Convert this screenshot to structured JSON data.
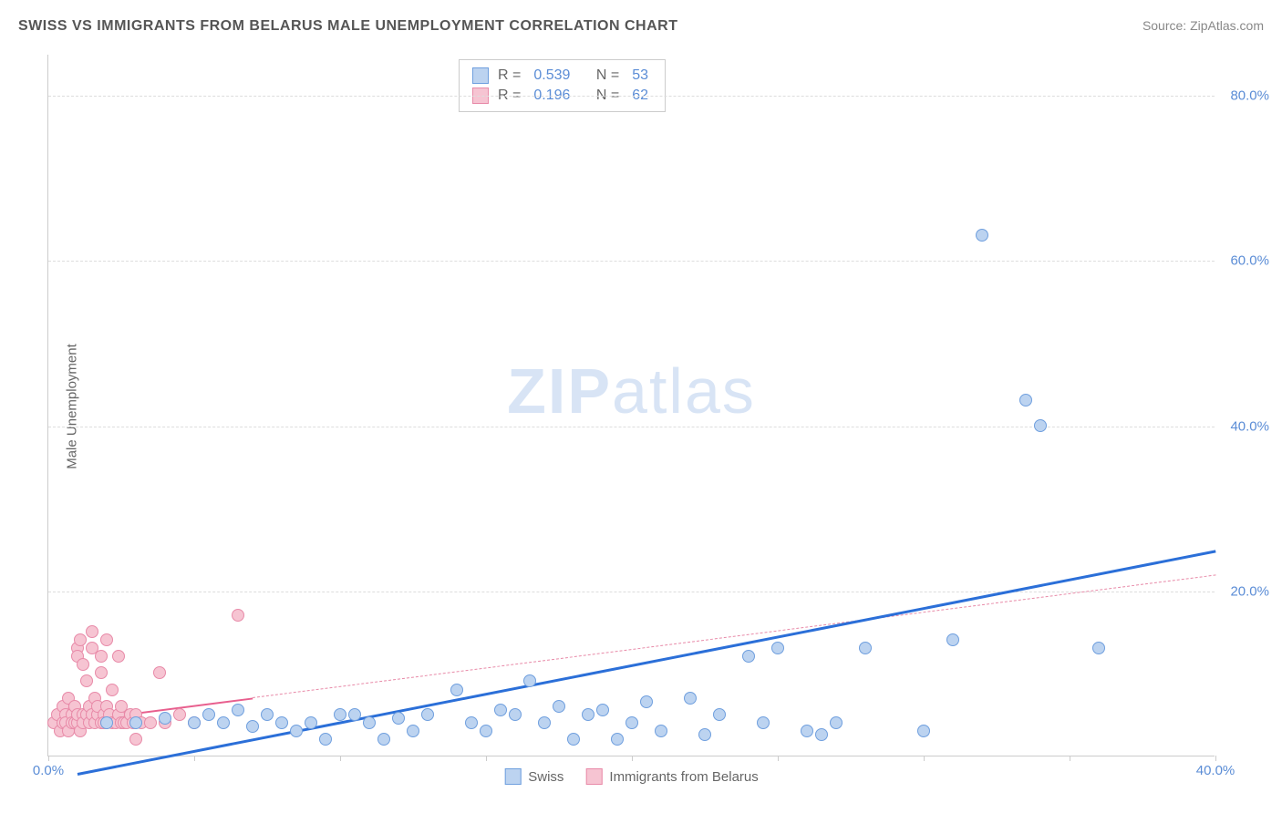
{
  "title": "SWISS VS IMMIGRANTS FROM BELARUS MALE UNEMPLOYMENT CORRELATION CHART",
  "source_label": "Source: ",
  "source_name": "ZipAtlas.com",
  "y_axis_label": "Male Unemployment",
  "watermark": {
    "bold": "ZIP",
    "light": "atlas"
  },
  "chart": {
    "type": "scatter",
    "xlim": [
      0,
      40
    ],
    "ylim": [
      0,
      85
    ],
    "x_ticks": [
      0,
      5,
      10,
      15,
      20,
      25,
      30,
      35,
      40
    ],
    "x_tick_labels": {
      "0": "0.0%",
      "40": "40.0%"
    },
    "y_ticks": [
      20,
      40,
      60,
      80
    ],
    "y_tick_labels": {
      "20": "20.0%",
      "40": "40.0%",
      "60": "60.0%",
      "80": "80.0%"
    },
    "background_color": "#ffffff",
    "grid_color": "#dddddd",
    "axis_color": "#cccccc",
    "tick_label_color": "#5b8dd6",
    "point_radius": 7,
    "series": [
      {
        "name": "Swiss",
        "fill": "#bcd3f0",
        "stroke": "#6f9fde",
        "trend_color": "#2b6fd8",
        "trend_width": 3,
        "trend_dashed_color": "#2b6fd8",
        "trend": {
          "x1": 1,
          "y1": -2,
          "x2": 40,
          "y2": 25
        },
        "solid_until_x": 40,
        "R": "0.539",
        "N": "53",
        "points": [
          [
            2,
            4
          ],
          [
            3,
            4
          ],
          [
            4,
            4.5
          ],
          [
            5,
            4
          ],
          [
            5.5,
            5
          ],
          [
            6,
            4
          ],
          [
            6.5,
            5.5
          ],
          [
            7,
            3.5
          ],
          [
            7.5,
            5
          ],
          [
            8,
            4
          ],
          [
            8.5,
            3
          ],
          [
            9,
            4
          ],
          [
            9.5,
            2
          ],
          [
            10,
            5
          ],
          [
            10.5,
            5
          ],
          [
            11,
            4
          ],
          [
            11.5,
            2
          ],
          [
            12,
            4.5
          ],
          [
            12.5,
            3
          ],
          [
            13,
            5
          ],
          [
            14,
            8
          ],
          [
            14.5,
            4
          ],
          [
            15,
            3
          ],
          [
            15.5,
            5.5
          ],
          [
            16,
            5
          ],
          [
            16.5,
            9
          ],
          [
            17,
            4
          ],
          [
            17.5,
            6
          ],
          [
            18,
            2
          ],
          [
            18.5,
            5
          ],
          [
            19,
            5.5
          ],
          [
            19.5,
            2
          ],
          [
            20,
            4
          ],
          [
            20.5,
            6.5
          ],
          [
            21,
            3
          ],
          [
            22,
            7
          ],
          [
            22.5,
            2.5
          ],
          [
            23,
            5
          ],
          [
            24,
            12
          ],
          [
            24.5,
            4
          ],
          [
            25,
            13
          ],
          [
            26,
            3
          ],
          [
            26.5,
            2.5
          ],
          [
            27,
            4
          ],
          [
            28,
            13
          ],
          [
            30,
            3
          ],
          [
            31,
            14
          ],
          [
            32,
            63
          ],
          [
            33.5,
            43
          ],
          [
            34,
            40
          ],
          [
            36,
            13
          ]
        ]
      },
      {
        "name": "Immigrants from Belarus",
        "fill": "#f6c4d2",
        "stroke": "#e88aa8",
        "trend_color": "#e85f8e",
        "trend_width": 2,
        "trend_dashed_color": "#e88aa8",
        "trend": {
          "x1": 0,
          "y1": 4,
          "x2": 40,
          "y2": 22
        },
        "solid_until_x": 7,
        "R": "0.196",
        "N": "62",
        "points": [
          [
            0.2,
            4
          ],
          [
            0.3,
            5
          ],
          [
            0.4,
            3
          ],
          [
            0.5,
            6
          ],
          [
            0.5,
            4
          ],
          [
            0.6,
            5
          ],
          [
            0.6,
            4
          ],
          [
            0.7,
            7
          ],
          [
            0.7,
            3
          ],
          [
            0.8,
            5
          ],
          [
            0.8,
            4
          ],
          [
            0.9,
            6
          ],
          [
            0.9,
            4
          ],
          [
            1.0,
            13
          ],
          [
            1.0,
            12
          ],
          [
            1.0,
            4
          ],
          [
            1.0,
            5
          ],
          [
            1.1,
            14
          ],
          [
            1.1,
            3
          ],
          [
            1.2,
            11
          ],
          [
            1.2,
            5
          ],
          [
            1.2,
            4
          ],
          [
            1.3,
            9
          ],
          [
            1.3,
            5
          ],
          [
            1.4,
            4
          ],
          [
            1.4,
            6
          ],
          [
            1.5,
            13
          ],
          [
            1.5,
            5
          ],
          [
            1.5,
            15
          ],
          [
            1.6,
            4
          ],
          [
            1.6,
            7
          ],
          [
            1.7,
            5
          ],
          [
            1.7,
            6
          ],
          [
            1.8,
            12
          ],
          [
            1.8,
            4
          ],
          [
            1.8,
            10
          ],
          [
            1.9,
            5
          ],
          [
            1.9,
            4
          ],
          [
            2.0,
            14
          ],
          [
            2.0,
            4
          ],
          [
            2.0,
            6
          ],
          [
            2.1,
            5
          ],
          [
            2.2,
            8
          ],
          [
            2.2,
            4
          ],
          [
            2.3,
            4
          ],
          [
            2.4,
            5
          ],
          [
            2.4,
            12
          ],
          [
            2.5,
            4
          ],
          [
            2.5,
            6
          ],
          [
            2.6,
            4
          ],
          [
            2.7,
            4
          ],
          [
            2.8,
            5
          ],
          [
            2.9,
            4
          ],
          [
            3.0,
            2
          ],
          [
            3.0,
            5
          ],
          [
            3.2,
            4
          ],
          [
            3.5,
            4
          ],
          [
            3.8,
            10
          ],
          [
            4.0,
            4
          ],
          [
            4.5,
            5
          ],
          [
            5.0,
            4
          ],
          [
            6.5,
            17
          ]
        ]
      }
    ]
  },
  "legend_bottom": [
    {
      "label": "Swiss",
      "fill": "#bcd3f0",
      "stroke": "#6f9fde"
    },
    {
      "label": "Immigrants from Belarus",
      "fill": "#f6c4d2",
      "stroke": "#e88aa8"
    }
  ],
  "legend_top_labels": {
    "R": "R =",
    "N": "N ="
  }
}
